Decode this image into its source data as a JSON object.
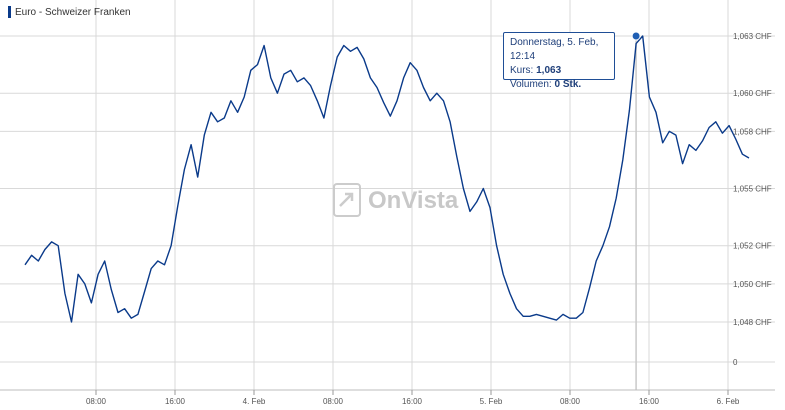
{
  "legend": {
    "label": "Euro - Schweizer Franken"
  },
  "tooltip": {
    "date": "Donnerstag, 5. Feb, 12:14",
    "price_label": "Kurs:",
    "price_value": "1,063",
    "volume_label": "Volumen:",
    "volume_value": "0 Stk."
  },
  "watermark": "OnVista",
  "colors": {
    "line": "#0a3a8a",
    "grid": "#d9d9d9",
    "marker": "#1f5fb4",
    "crosshair": "#c9c9c9"
  },
  "chart_data": {
    "type": "line",
    "y_axis_position": "right",
    "y_ticks": [
      {
        "value": 1.063,
        "label": "1,063 CHF"
      },
      {
        "value": 1.06,
        "label": "1,060 CHF"
      },
      {
        "value": 1.058,
        "label": "1,058 CHF"
      },
      {
        "value": 1.055,
        "label": "1,055 CHF"
      },
      {
        "value": 1.052,
        "label": "1,052 CHF"
      },
      {
        "value": 1.05,
        "label": "1,050 CHF"
      },
      {
        "value": 1.048,
        "label": "1,048 CHF"
      },
      {
        "value": 0,
        "label": "0"
      }
    ],
    "x_ticks": [
      "08:00",
      "16:00",
      "4. Feb",
      "08:00",
      "16:00",
      "5. Feb",
      "08:00",
      "16:00",
      "6. Feb"
    ],
    "series": [
      {
        "values": [
          1.051,
          1.0515,
          1.0512,
          1.0518,
          1.0522,
          1.052,
          1.0495,
          1.048,
          1.0505,
          1.05,
          1.049,
          1.0505,
          1.0512,
          1.0497,
          1.0485,
          1.0487,
          1.0482,
          1.0484,
          1.0496,
          1.0508,
          1.0512,
          1.051,
          1.052,
          1.0541,
          1.056,
          1.0573,
          1.0556,
          1.0578,
          1.059,
          1.0585,
          1.0587,
          1.0596,
          1.059,
          1.0598,
          1.0612,
          1.0615,
          1.0625,
          1.0608,
          1.06,
          1.061,
          1.0612,
          1.0606,
          1.0608,
          1.0604,
          1.0596,
          1.0587,
          1.0604,
          1.0619,
          1.0625,
          1.0622,
          1.0624,
          1.0618,
          1.0608,
          1.0603,
          1.0595,
          1.0588,
          1.0596,
          1.0608,
          1.0616,
          1.0612,
          1.0603,
          1.0596,
          1.06,
          1.0596,
          1.0585,
          1.0567,
          1.055,
          1.0538,
          1.0543,
          1.055,
          1.054,
          1.052,
          1.0505,
          1.0495,
          1.0487,
          1.0483,
          1.0483,
          1.0484,
          1.0483,
          1.0482,
          1.0481,
          1.0484,
          1.0482,
          1.0482,
          1.0485,
          1.0498,
          1.0512,
          1.052,
          1.053,
          1.0545,
          1.0565,
          1.0591,
          1.0626,
          1.063,
          1.0598,
          1.059,
          1.0574,
          1.058,
          1.0578,
          1.0563,
          1.0573,
          1.057,
          1.0575,
          1.0582,
          1.0585,
          1.0579,
          1.0583,
          1.0576,
          1.0568,
          1.0566
        ]
      }
    ],
    "highlight": {
      "index": 92,
      "value": 1.063
    },
    "grid": true,
    "legend_position": "top-left"
  }
}
